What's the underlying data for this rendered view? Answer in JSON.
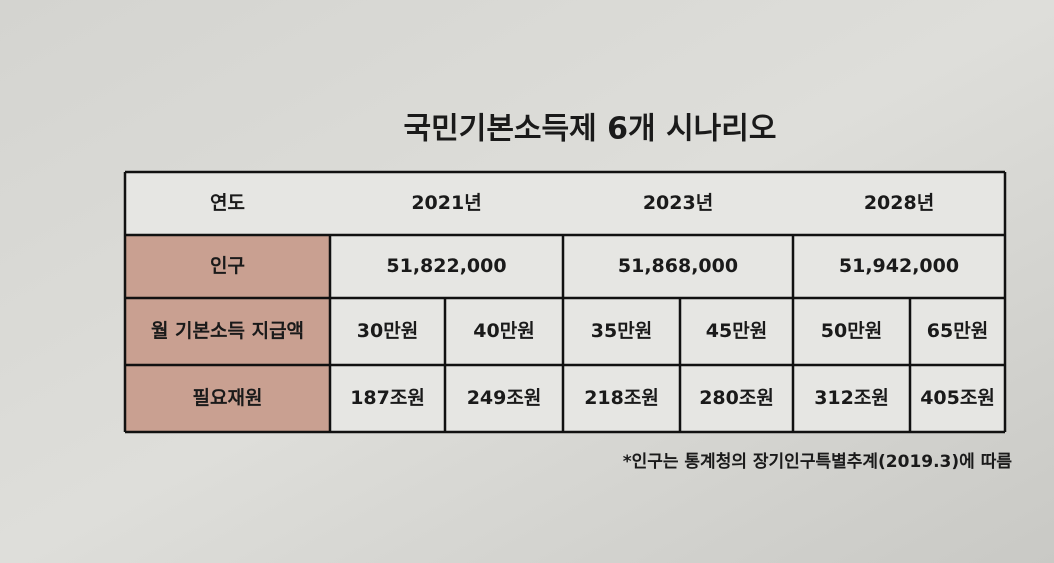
{
  "title": "국민기본소득제 6개 시나리오",
  "table": {
    "header": [
      "연도",
      "2021년",
      "2023년",
      "2028년"
    ],
    "rows": [
      {
        "label": "인구",
        "cells": [
          "51,822,000",
          "51,868,000",
          "51,942,000"
        ]
      },
      {
        "label": "월 기본소득 지급액",
        "cells": [
          "30만원",
          "40만원",
          "35만원",
          "45만원",
          "50만원",
          "65만원"
        ]
      },
      {
        "label": "필요재원",
        "cells": [
          "187조원",
          "249조원",
          "218조원",
          "280조원",
          "312조원",
          "405조원"
        ]
      }
    ]
  },
  "footnote": "*인구는 통계청의 장기인구특별추계(2019.3)에 따름"
}
